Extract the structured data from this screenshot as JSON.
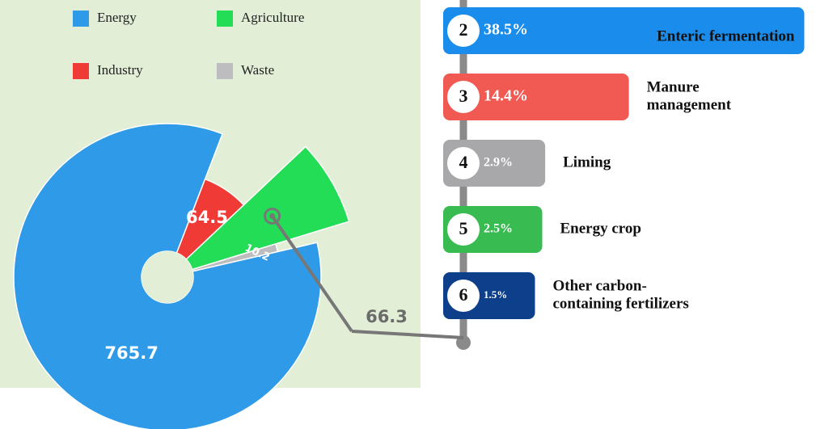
{
  "chart_data": [
    {
      "type": "pie",
      "categories": [
        "Energy",
        "Industry",
        "Agriculture",
        "Waste"
      ],
      "values": [
        765.7,
        64.5,
        66.3,
        10.2
      ],
      "colors": [
        "#2f9ae8",
        "#f03a36",
        "#22dd55",
        "#bdbdbf"
      ]
    },
    {
      "type": "hbar",
      "ranks": [
        2,
        3,
        4,
        5,
        6
      ],
      "categories": [
        [
          "Enteric fermentation"
        ],
        [
          "Manure",
          "management"
        ],
        [
          "Liming"
        ],
        [
          "Energy crop"
        ],
        [
          "Other carbon-",
          "containing fertilizers"
        ]
      ],
      "values": [
        38.5,
        14.4,
        2.9,
        2.5,
        1.5
      ],
      "value_labels": [
        "38.5%",
        "14.4%",
        "2.9%",
        "2.5%",
        "1.5%"
      ],
      "colors": [
        "#1a8cec",
        "#f05a52",
        "#a8a8ab",
        "#38bb50",
        "#0d3f8a"
      ]
    }
  ]
}
